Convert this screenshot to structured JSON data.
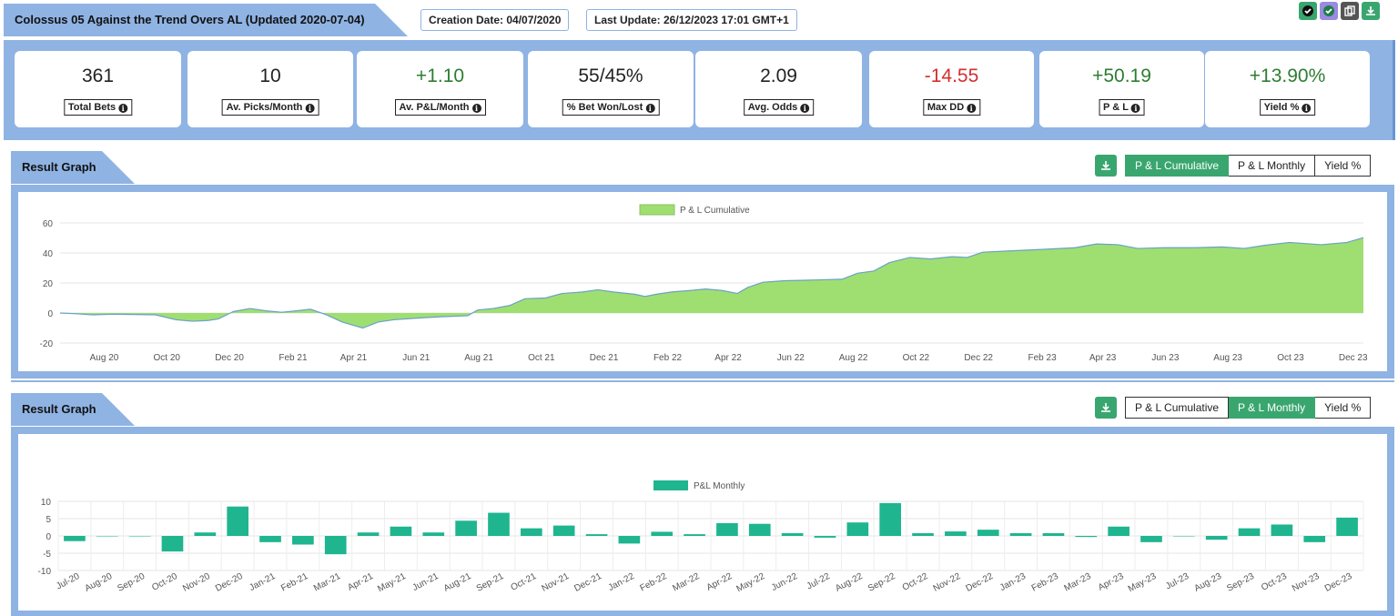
{
  "header": {
    "title": "Colossus 05 Against the Trend Overs AL (Updated 2020-07-04)",
    "creation_date": "Creation Date: 04/07/2020",
    "last_update": "Last Update: 26/12/2023 17:01 GMT+1"
  },
  "top_icons": [
    "check-icon",
    "check-icon",
    "copy-icon",
    "download-icon"
  ],
  "stats": [
    {
      "value": "361",
      "label": "Total Bets",
      "color": "#222222"
    },
    {
      "value": "10",
      "label": "Av. Picks/Month",
      "color": "#222222"
    },
    {
      "value": "+1.10",
      "label": "Av. P&L/Month",
      "color": "#2e7d32"
    },
    {
      "value": "55/45%",
      "label": "% Bet Won/Lost",
      "color": "#222222"
    },
    {
      "value": "2.09",
      "label": "Avg. Odds",
      "color": "#222222"
    },
    {
      "value": "-14.55",
      "label": "Max DD",
      "color": "#d32f2f"
    },
    {
      "value": "+50.19",
      "label": "P & L",
      "color": "#2e7d32"
    },
    {
      "value": "+13.90%",
      "label": "Yield %",
      "color": "#2e7d32"
    }
  ],
  "panel1": {
    "title": "Result Graph",
    "toggles": [
      "P & L Cumulative",
      "P & L Monthly",
      "Yield %"
    ],
    "active": 0
  },
  "panel2": {
    "title": "Result Graph",
    "toggles": [
      "P & L Cumulative",
      "P & L Monthly",
      "Yield %"
    ],
    "active": 1
  },
  "chart_data": [
    {
      "type": "area",
      "legend": "P & L Cumulative",
      "legend_position": "top-center",
      "color": "#9fdf71",
      "line_color": "#6aa0c8",
      "ylim": [
        -20,
        60
      ],
      "yticks": [
        -20,
        0,
        20,
        40,
        60
      ],
      "xlim": [
        "2020-07-04",
        "2023-12-26"
      ],
      "x_ticks": [
        "Aug 20",
        "Oct 20",
        "Dec 20",
        "Feb 21",
        "Apr 21",
        "Jun 21",
        "Aug 21",
        "Oct 21",
        "Dec 21",
        "Feb 22",
        "Apr 22",
        "Jun 22",
        "Aug 22",
        "Oct 22",
        "Dec 22",
        "Feb 23",
        "Apr 23",
        "Jun 23",
        "Aug 23",
        "Oct 23",
        "Dec 23"
      ],
      "grid": true,
      "points": [
        {
          "x": "2020-07-04",
          "y": 0
        },
        {
          "x": "2020-07-20",
          "y": -0.5
        },
        {
          "x": "2020-08-05",
          "y": -1.2
        },
        {
          "x": "2020-08-25",
          "y": -0.8
        },
        {
          "x": "2020-09-15",
          "y": -1.0
        },
        {
          "x": "2020-10-05",
          "y": -1.2
        },
        {
          "x": "2020-10-25",
          "y": -4.5
        },
        {
          "x": "2020-11-10",
          "y": -5.5
        },
        {
          "x": "2020-11-25",
          "y": -5.0
        },
        {
          "x": "2020-12-05",
          "y": -4.0
        },
        {
          "x": "2020-12-20",
          "y": 1.0
        },
        {
          "x": "2021-01-05",
          "y": 3.0
        },
        {
          "x": "2021-01-20",
          "y": 1.5
        },
        {
          "x": "2021-02-05",
          "y": 0.5
        },
        {
          "x": "2021-02-20",
          "y": 1.5
        },
        {
          "x": "2021-03-05",
          "y": 2.5
        },
        {
          "x": "2021-03-20",
          "y": -1.0
        },
        {
          "x": "2021-04-05",
          "y": -6.0
        },
        {
          "x": "2021-04-25",
          "y": -10.0
        },
        {
          "x": "2021-05-10",
          "y": -6.0
        },
        {
          "x": "2021-05-25",
          "y": -4.5
        },
        {
          "x": "2021-06-15",
          "y": -3.5
        },
        {
          "x": "2021-07-10",
          "y": -2.5
        },
        {
          "x": "2021-08-05",
          "y": -1.8
        },
        {
          "x": "2021-08-15",
          "y": 2.0
        },
        {
          "x": "2021-08-30",
          "y": 3.0
        },
        {
          "x": "2021-09-15",
          "y": 5.0
        },
        {
          "x": "2021-09-30",
          "y": 9.5
        },
        {
          "x": "2021-10-20",
          "y": 10.0
        },
        {
          "x": "2021-11-05",
          "y": 13.0
        },
        {
          "x": "2021-11-25",
          "y": 14.0
        },
        {
          "x": "2021-12-10",
          "y": 15.5
        },
        {
          "x": "2021-12-25",
          "y": 14.0
        },
        {
          "x": "2022-01-15",
          "y": 12.5
        },
        {
          "x": "2022-01-25",
          "y": 11.0
        },
        {
          "x": "2022-02-05",
          "y": 12.5
        },
        {
          "x": "2022-02-20",
          "y": 14.0
        },
        {
          "x": "2022-03-10",
          "y": 15.0
        },
        {
          "x": "2022-03-25",
          "y": 16.0
        },
        {
          "x": "2022-04-10",
          "y": 15.0
        },
        {
          "x": "2022-04-25",
          "y": 13.0
        },
        {
          "x": "2022-05-05",
          "y": 17.0
        },
        {
          "x": "2022-05-20",
          "y": 20.5
        },
        {
          "x": "2022-06-10",
          "y": 21.5
        },
        {
          "x": "2022-07-10",
          "y": 22.0
        },
        {
          "x": "2022-08-05",
          "y": 22.5
        },
        {
          "x": "2022-08-20",
          "y": 26.5
        },
        {
          "x": "2022-09-05",
          "y": 28.0
        },
        {
          "x": "2022-09-20",
          "y": 33.5
        },
        {
          "x": "2022-10-10",
          "y": 37.0
        },
        {
          "x": "2022-10-30",
          "y": 36.0
        },
        {
          "x": "2022-11-20",
          "y": 37.5
        },
        {
          "x": "2022-12-05",
          "y": 37.0
        },
        {
          "x": "2022-12-20",
          "y": 40.5
        },
        {
          "x": "2023-01-20",
          "y": 41.5
        },
        {
          "x": "2023-02-20",
          "y": 42.5
        },
        {
          "x": "2023-03-20",
          "y": 43.5
        },
        {
          "x": "2023-04-10",
          "y": 46.0
        },
        {
          "x": "2023-05-01",
          "y": 45.5
        },
        {
          "x": "2023-05-20",
          "y": 43.0
        },
        {
          "x": "2023-06-15",
          "y": 43.5
        },
        {
          "x": "2023-07-15",
          "y": 43.5
        },
        {
          "x": "2023-08-10",
          "y": 44.0
        },
        {
          "x": "2023-09-01",
          "y": 43.0
        },
        {
          "x": "2023-09-20",
          "y": 45.0
        },
        {
          "x": "2023-10-15",
          "y": 47.0
        },
        {
          "x": "2023-11-15",
          "y": 45.5
        },
        {
          "x": "2023-12-10",
          "y": 47.0
        },
        {
          "x": "2023-12-26",
          "y": 50.19
        }
      ]
    },
    {
      "type": "bar",
      "legend": "P&L Monthly",
      "legend_position": "top-center",
      "color": "#1fb58f",
      "ylim": [
        -10,
        10
      ],
      "yticks": [
        -10,
        -5,
        0,
        5,
        10
      ],
      "grid": true,
      "categories": [
        "Jul-20",
        "Aug-20",
        "Sep-20",
        "Oct-20",
        "Nov-20",
        "Dec-20",
        "Jan-21",
        "Feb-21",
        "Mar-21",
        "Apr-21",
        "May-21",
        "Jun-21",
        "Aug-21",
        "Sep-21",
        "Oct-21",
        "Nov-21",
        "Dec-21",
        "Jan-22",
        "Feb-22",
        "Mar-22",
        "Apr-22",
        "May-22",
        "Jun-22",
        "Jul-22",
        "Aug-22",
        "Sep-22",
        "Oct-22",
        "Nov-22",
        "Dec-22",
        "Jan-23",
        "Feb-23",
        "Mar-23",
        "Apr-23",
        "May-23",
        "Jul-23",
        "Aug-23",
        "Sep-23",
        "Oct-23",
        "Nov-23",
        "Dec-23"
      ],
      "bars": [
        -1.5,
        0,
        0,
        -4.5,
        1.0,
        8.5,
        -1.8,
        -2.5,
        -5.3,
        1.0,
        2.7,
        1.0,
        4.4,
        6.7,
        2.2,
        3.0,
        0.5,
        -2.2,
        1.2,
        0.5,
        3.7,
        3.5,
        0.8,
        -0.5,
        3.9,
        9.5,
        0.8,
        1.3,
        1.8,
        0.8,
        0.8,
        -0.3,
        2.7,
        -1.8,
        0,
        -1.1,
        2.2,
        3.3,
        -1.8,
        5.3
      ]
    }
  ]
}
